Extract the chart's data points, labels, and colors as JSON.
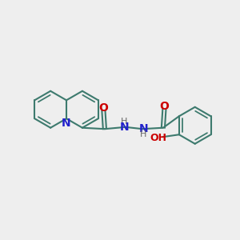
{
  "bg_color": "#eeeeee",
  "bond_color": "#3d7a6e",
  "nitrogen_color": "#2222cc",
  "oxygen_color": "#cc0000",
  "h_color": "#666666",
  "bond_width": 1.5,
  "font_size": 9,
  "figsize": [
    3.0,
    3.0
  ],
  "dpi": 100,
  "xlim": [
    0,
    10
  ],
  "ylim": [
    0,
    10
  ]
}
